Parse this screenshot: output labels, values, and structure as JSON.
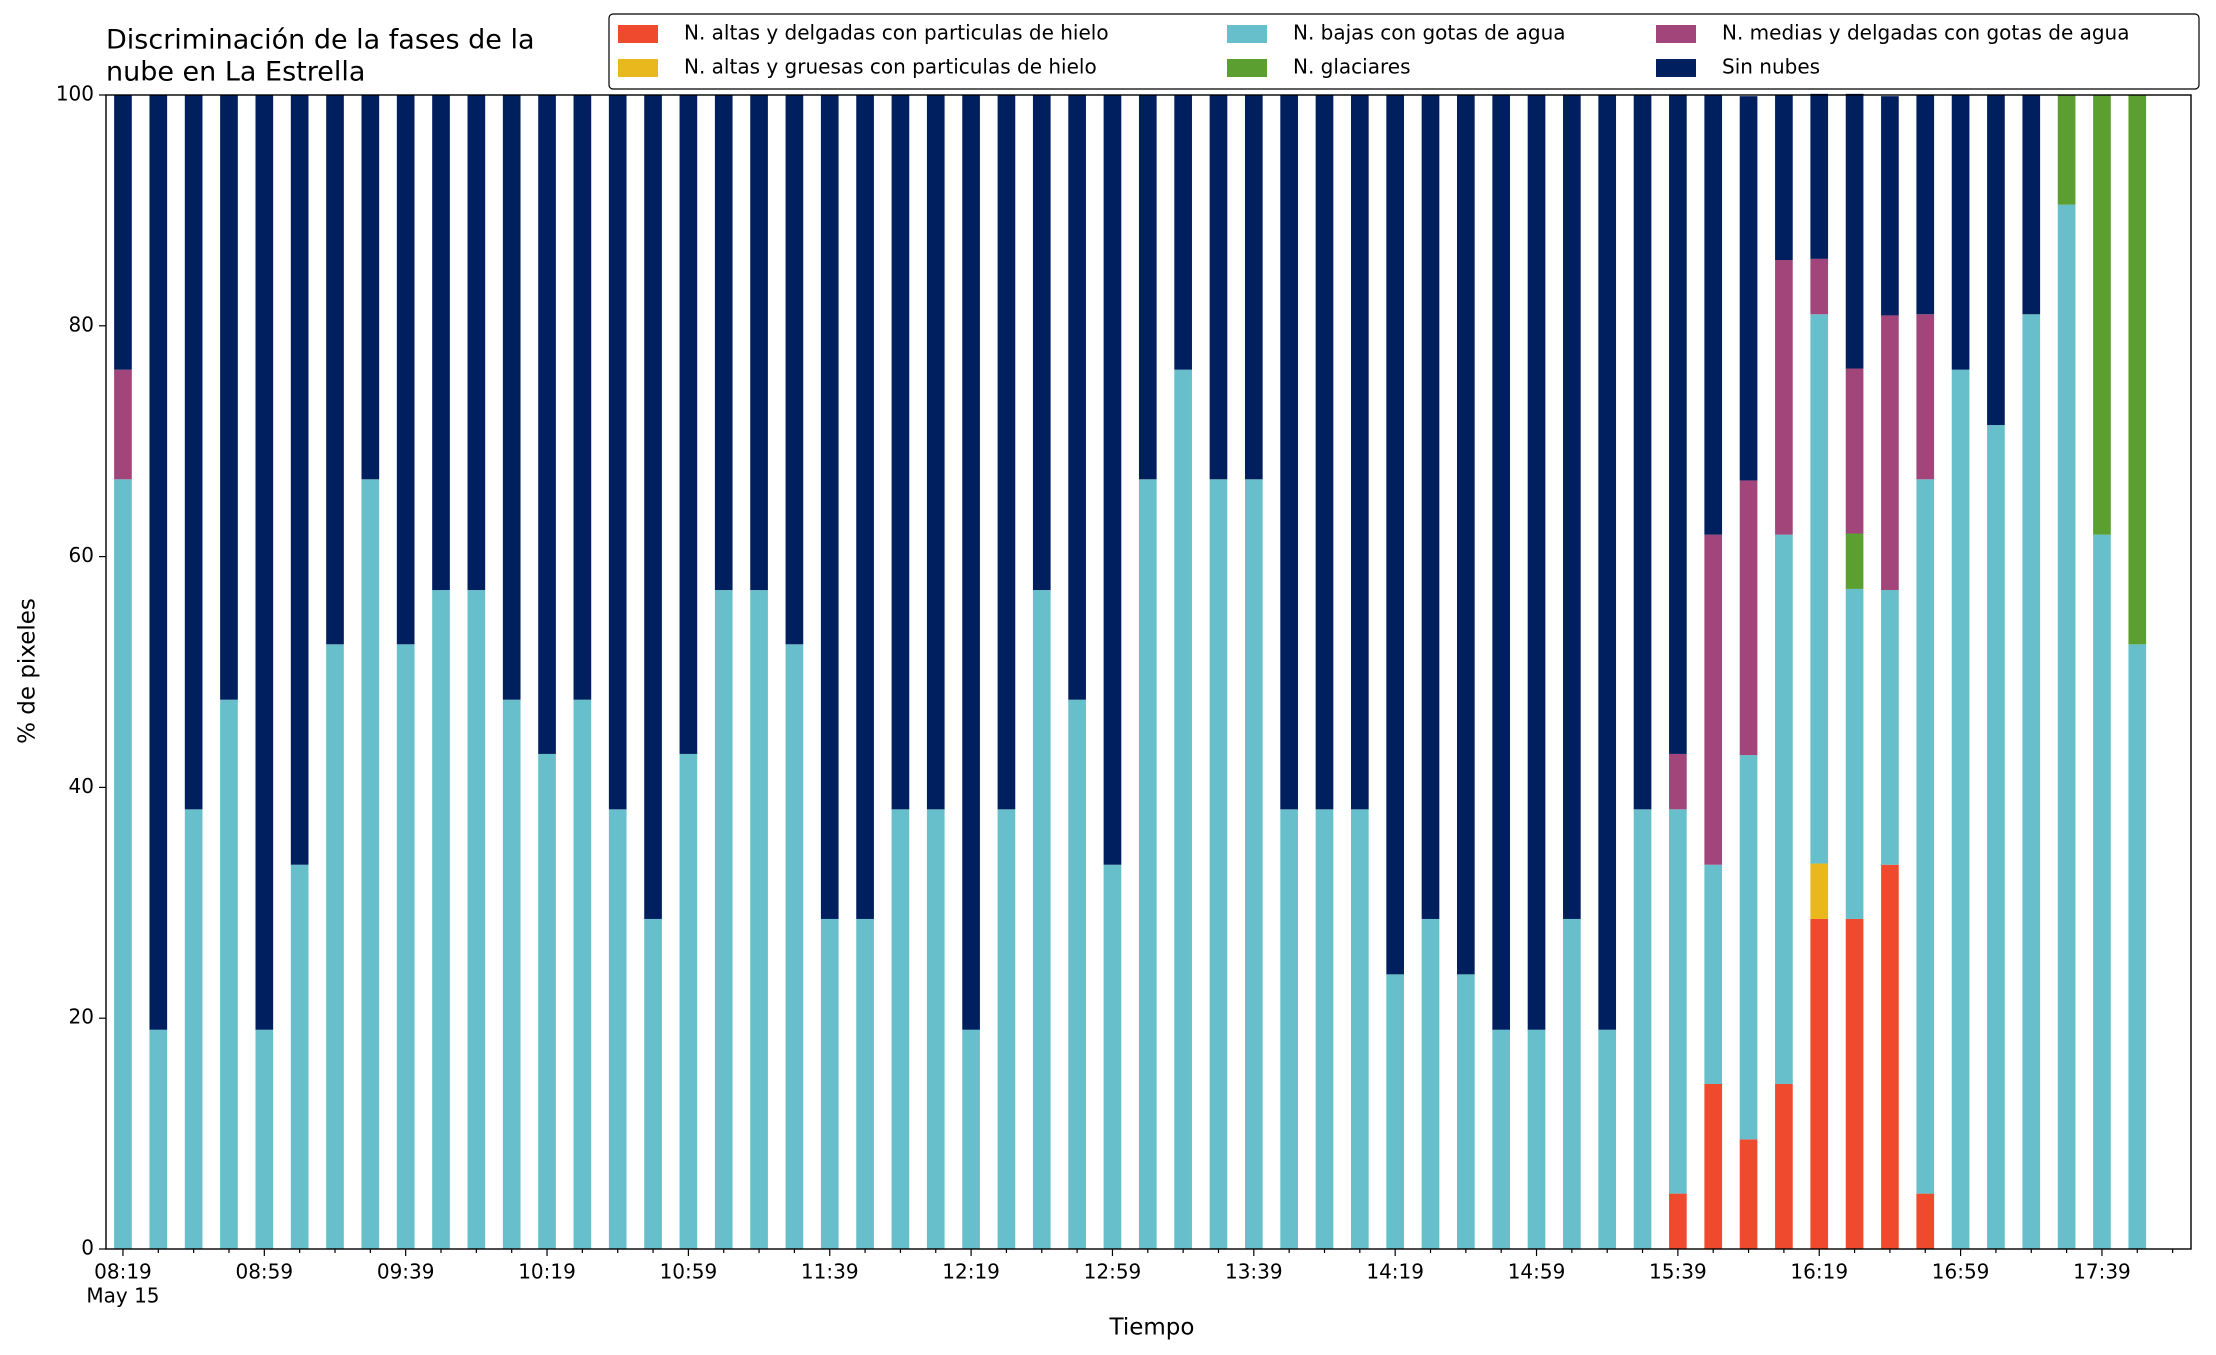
{
  "chart_data": {
    "type": "stacked-bar",
    "title": [
      "Discriminación de la fases de la",
      "nube en La Estrella"
    ],
    "xlabel": "Tiempo",
    "ylabel": "% de pixeles",
    "x_date_label": "May 15",
    "categories": [
      "08:19",
      null,
      null,
      null,
      "08:59",
      null,
      null,
      null,
      "09:39",
      null,
      null,
      null,
      "10:19",
      null,
      null,
      null,
      "10:59",
      null,
      null,
      null,
      "11:39",
      null,
      null,
      null,
      "12:19",
      null,
      null,
      null,
      "12:59",
      null,
      null,
      null,
      "13:39",
      null,
      null,
      null,
      "14:19",
      null,
      null,
      null,
      "14:59",
      null,
      null,
      null,
      "15:39",
      null,
      null,
      null,
      "16:19",
      null,
      null,
      null,
      "16:59",
      null,
      null,
      null,
      "17:39",
      null
    ],
    "ylim": [
      0,
      100
    ],
    "yticks": [
      0,
      20,
      40,
      60,
      80,
      100
    ],
    "legend": "top-right",
    "series": [
      {
        "name": "N. altas y delgadas con particulas de hielo",
        "color": "#f04a2e",
        "values": [
          0,
          0,
          0,
          0,
          0,
          0,
          0,
          0,
          0,
          0,
          0,
          0,
          0,
          0,
          0,
          0,
          0,
          0,
          0,
          0,
          0,
          0,
          0,
          0,
          0,
          0,
          0,
          0,
          0,
          0,
          0,
          0,
          0,
          0,
          0,
          0,
          0,
          0,
          0,
          0,
          0,
          0,
          0,
          0,
          4.8,
          14.3,
          9.5,
          14.3,
          28.6,
          28.6,
          33.3,
          4.8,
          0,
          0,
          0,
          0,
          0,
          0
        ]
      },
      {
        "name": "N. altas y gruesas con particulas de hielo",
        "color": "#e8b81d",
        "values": [
          0,
          0,
          0,
          0,
          0,
          0,
          0,
          0,
          0,
          0,
          0,
          0,
          0,
          0,
          0,
          0,
          0,
          0,
          0,
          0,
          0,
          0,
          0,
          0,
          0,
          0,
          0,
          0,
          0,
          0,
          0,
          0,
          0,
          0,
          0,
          0,
          0,
          0,
          0,
          0,
          0,
          0,
          0,
          0,
          0,
          0,
          0,
          0,
          4.8,
          0,
          0,
          0,
          0,
          0,
          0,
          0,
          0,
          0
        ]
      },
      {
        "name": "N. bajas con gotas de agua",
        "color": "#66bfca",
        "values": [
          66.7,
          19.0,
          38.1,
          47.6,
          19.0,
          33.3,
          52.4,
          66.7,
          52.4,
          57.1,
          57.1,
          47.6,
          42.9,
          47.6,
          38.1,
          28.6,
          42.9,
          57.1,
          57.1,
          52.4,
          28.6,
          28.6,
          38.1,
          38.1,
          19.0,
          38.1,
          57.1,
          47.6,
          33.3,
          66.7,
          76.2,
          66.7,
          66.7,
          38.1,
          38.1,
          38.1,
          23.8,
          28.6,
          23.8,
          19.0,
          19.0,
          28.6,
          19.0,
          38.1,
          33.3,
          19.0,
          33.3,
          47.6,
          47.6,
          28.6,
          23.8,
          61.9,
          76.2,
          71.4,
          81.0,
          90.5,
          61.9,
          52.4
        ]
      },
      {
        "name": "N. glaciares",
        "color": "#5a9f2f",
        "values": [
          0,
          0,
          0,
          0,
          0,
          0,
          0,
          0,
          0,
          0,
          0,
          0,
          0,
          0,
          0,
          0,
          0,
          0,
          0,
          0,
          0,
          0,
          0,
          0,
          0,
          0,
          0,
          0,
          0,
          0,
          0,
          0,
          0,
          0,
          0,
          0,
          0,
          0,
          0,
          0,
          0,
          0,
          0,
          0,
          0,
          0,
          0,
          0,
          0,
          4.8,
          0,
          0,
          0,
          0,
          0,
          9.5,
          38.1,
          47.6
        ]
      },
      {
        "name": "N. medias y delgadas con gotas de agua",
        "color": "#a2457a",
        "values": [
          9.5,
          0,
          0,
          0,
          0,
          0,
          0,
          0,
          0,
          0,
          0,
          0,
          0,
          0,
          0,
          0,
          0,
          0,
          0,
          0,
          0,
          0,
          0,
          0,
          0,
          0,
          0,
          0,
          0,
          0,
          0,
          0,
          0,
          0,
          0,
          0,
          0,
          0,
          0,
          0,
          0,
          0,
          0,
          0,
          4.8,
          28.6,
          23.8,
          23.8,
          4.8,
          14.3,
          23.8,
          14.3,
          0,
          0,
          0,
          0,
          0,
          0
        ]
      },
      {
        "name": "Sin nubes",
        "color": "#001f5f",
        "values": [
          23.8,
          81.0,
          61.9,
          52.4,
          81.0,
          66.7,
          47.6,
          33.3,
          47.6,
          42.9,
          42.9,
          52.4,
          57.1,
          52.4,
          61.9,
          71.4,
          57.1,
          42.9,
          42.9,
          47.6,
          71.4,
          71.4,
          61.9,
          61.9,
          81.0,
          61.9,
          42.9,
          52.4,
          66.7,
          33.3,
          23.8,
          33.3,
          33.3,
          61.9,
          61.9,
          61.9,
          76.2,
          71.4,
          76.2,
          81.0,
          81.0,
          71.4,
          81.0,
          61.9,
          57.1,
          38.1,
          33.3,
          14.3,
          14.3,
          23.8,
          19.0,
          19.0,
          23.8,
          28.6,
          19.0,
          0,
          0,
          0
        ]
      }
    ]
  }
}
